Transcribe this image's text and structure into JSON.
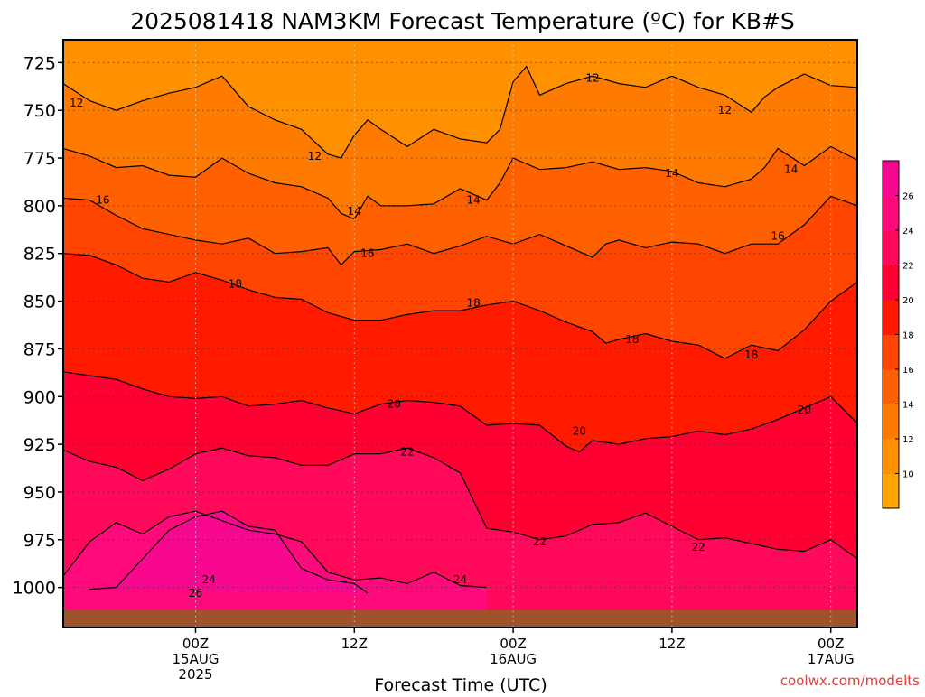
{
  "chart_data": {
    "type": "heatmap",
    "title": "2025081418 NAM3KM Forecast Temperature (ºC) for KB#S",
    "xlabel": "Forecast Time (UTC)",
    "ylabel": "",
    "credit": "coolwx.com/modelts",
    "y_axis": {
      "scale": "pressure",
      "direction": "decreasing-up",
      "range": [
        1012,
        713
      ],
      "ticks": [
        725,
        750,
        775,
        800,
        825,
        850,
        875,
        900,
        925,
        950,
        975,
        1000
      ]
    },
    "x_axis": {
      "unit": "hours",
      "range": [
        -10,
        50
      ],
      "ticks": [
        {
          "x": 0,
          "lines": [
            "00Z",
            "15AUG",
            "2025"
          ]
        },
        {
          "x": 12,
          "lines": [
            "12Z"
          ]
        },
        {
          "x": 24,
          "lines": [
            "00Z",
            "16AUG"
          ]
        },
        {
          "x": 36,
          "lines": [
            "12Z"
          ]
        },
        {
          "x": 48,
          "lines": [
            "00Z",
            "17AUG"
          ]
        }
      ]
    },
    "contour_interval": 2,
    "grid": true,
    "color_scale": {
      "levels": [
        8,
        10,
        12,
        14,
        16,
        18,
        20,
        22,
        24,
        26,
        28
      ],
      "labels": [
        10,
        12,
        14,
        16,
        18,
        20,
        22,
        24,
        26
      ],
      "colors": [
        "#ffa400",
        "#ff9000",
        "#ff7b00",
        "#ff6000",
        "#ff4500",
        "#ff1a00",
        "#ff0033",
        "#ff0a5a",
        "#ff0a7a",
        "#f8078f"
      ]
    },
    "isotherms": [
      {
        "value": 12,
        "points": [
          [
            -10,
            736
          ],
          [
            -8,
            745
          ],
          [
            -6,
            750
          ],
          [
            -4,
            745
          ],
          [
            -2,
            741
          ],
          [
            0,
            738
          ],
          [
            2,
            732
          ],
          [
            4,
            748
          ],
          [
            6,
            755
          ],
          [
            8,
            760
          ],
          [
            10,
            773
          ],
          [
            11,
            775
          ],
          [
            12,
            763
          ],
          [
            13,
            755
          ],
          [
            14,
            760
          ],
          [
            16,
            769
          ],
          [
            18,
            760
          ],
          [
            20,
            765
          ],
          [
            22,
            767
          ],
          [
            23,
            760
          ],
          [
            24,
            735
          ],
          [
            25,
            727
          ],
          [
            26,
            742
          ],
          [
            28,
            736
          ],
          [
            30,
            732
          ],
          [
            32,
            736
          ],
          [
            34,
            738
          ],
          [
            36,
            732
          ],
          [
            38,
            738
          ],
          [
            40,
            742
          ],
          [
            42,
            751
          ],
          [
            43,
            743
          ],
          [
            44,
            738
          ],
          [
            46,
            731
          ],
          [
            48,
            737
          ],
          [
            50,
            738
          ]
        ]
      },
      {
        "value": 14,
        "points": [
          [
            -10,
            770
          ],
          [
            -8,
            774
          ],
          [
            -6,
            780
          ],
          [
            -4,
            779
          ],
          [
            -2,
            784
          ],
          [
            0,
            785
          ],
          [
            2,
            775
          ],
          [
            4,
            783
          ],
          [
            6,
            788
          ],
          [
            8,
            790
          ],
          [
            10,
            796
          ],
          [
            11,
            804
          ],
          [
            12,
            807
          ],
          [
            13,
            795
          ],
          [
            14,
            800
          ],
          [
            16,
            800
          ],
          [
            18,
            799
          ],
          [
            20,
            791
          ],
          [
            22,
            797
          ],
          [
            23,
            788
          ],
          [
            24,
            775
          ],
          [
            26,
            781
          ],
          [
            28,
            780
          ],
          [
            30,
            777
          ],
          [
            32,
            781
          ],
          [
            34,
            780
          ],
          [
            36,
            782
          ],
          [
            38,
            788
          ],
          [
            40,
            790
          ],
          [
            42,
            786
          ],
          [
            43,
            780
          ],
          [
            44,
            770
          ],
          [
            46,
            779
          ],
          [
            48,
            769
          ],
          [
            50,
            776
          ]
        ]
      },
      {
        "value": 16,
        "points": [
          [
            -10,
            796
          ],
          [
            -8,
            797
          ],
          [
            -6,
            805
          ],
          [
            -4,
            812
          ],
          [
            -2,
            815
          ],
          [
            0,
            818
          ],
          [
            2,
            820
          ],
          [
            4,
            817
          ],
          [
            6,
            825
          ],
          [
            8,
            824
          ],
          [
            10,
            822
          ],
          [
            11,
            831
          ],
          [
            12,
            824
          ],
          [
            14,
            823
          ],
          [
            16,
            820
          ],
          [
            18,
            825
          ],
          [
            20,
            821
          ],
          [
            22,
            816
          ],
          [
            24,
            820
          ],
          [
            26,
            815
          ],
          [
            28,
            821
          ],
          [
            30,
            827
          ],
          [
            31,
            820
          ],
          [
            32,
            818
          ],
          [
            34,
            822
          ],
          [
            36,
            819
          ],
          [
            38,
            820
          ],
          [
            40,
            825
          ],
          [
            42,
            820
          ],
          [
            44,
            820
          ],
          [
            46,
            810
          ],
          [
            48,
            795
          ],
          [
            50,
            800
          ]
        ]
      },
      {
        "value": 18,
        "points": [
          [
            -10,
            825
          ],
          [
            -8,
            826
          ],
          [
            -6,
            831
          ],
          [
            -4,
            838
          ],
          [
            -2,
            840
          ],
          [
            0,
            835
          ],
          [
            2,
            839
          ],
          [
            4,
            844
          ],
          [
            6,
            848
          ],
          [
            8,
            849
          ],
          [
            10,
            856
          ],
          [
            12,
            860
          ],
          [
            14,
            860
          ],
          [
            16,
            857
          ],
          [
            18,
            855
          ],
          [
            20,
            855
          ],
          [
            22,
            852
          ],
          [
            24,
            850
          ],
          [
            26,
            855
          ],
          [
            28,
            861
          ],
          [
            30,
            866
          ],
          [
            31,
            872
          ],
          [
            32,
            870
          ],
          [
            34,
            867
          ],
          [
            36,
            871
          ],
          [
            38,
            873
          ],
          [
            40,
            880
          ],
          [
            42,
            873
          ],
          [
            44,
            876
          ],
          [
            46,
            865
          ],
          [
            48,
            850
          ],
          [
            50,
            840
          ]
        ]
      },
      {
        "value": 20,
        "points": [
          [
            -10,
            887
          ],
          [
            -8,
            889
          ],
          [
            -6,
            891
          ],
          [
            -4,
            896
          ],
          [
            -2,
            900
          ],
          [
            0,
            901
          ],
          [
            2,
            900
          ],
          [
            4,
            905
          ],
          [
            6,
            904
          ],
          [
            8,
            902
          ],
          [
            10,
            906
          ],
          [
            12,
            909
          ],
          [
            14,
            904
          ],
          [
            16,
            902
          ],
          [
            18,
            903
          ],
          [
            20,
            905
          ],
          [
            22,
            915
          ],
          [
            24,
            914
          ],
          [
            26,
            915
          ],
          [
            28,
            926
          ],
          [
            29,
            929
          ],
          [
            30,
            923
          ],
          [
            32,
            925
          ],
          [
            34,
            922
          ],
          [
            36,
            921
          ],
          [
            38,
            918
          ],
          [
            40,
            920
          ],
          [
            42,
            917
          ],
          [
            44,
            912
          ],
          [
            46,
            906
          ],
          [
            48,
            900
          ],
          [
            50,
            914
          ]
        ]
      },
      {
        "value": 22,
        "points": [
          [
            -10,
            928
          ],
          [
            -8,
            934
          ],
          [
            -6,
            937
          ],
          [
            -4,
            944
          ],
          [
            -2,
            938
          ],
          [
            0,
            930
          ],
          [
            2,
            927
          ],
          [
            4,
            931
          ],
          [
            6,
            932
          ],
          [
            8,
            936
          ],
          [
            10,
            936
          ],
          [
            12,
            930
          ],
          [
            14,
            930
          ],
          [
            16,
            927
          ],
          [
            18,
            932
          ],
          [
            20,
            940
          ],
          [
            22,
            969
          ],
          [
            24,
            971
          ],
          [
            26,
            975
          ],
          [
            28,
            973
          ],
          [
            30,
            967
          ],
          [
            32,
            966
          ],
          [
            34,
            961
          ],
          [
            36,
            968
          ],
          [
            38,
            975
          ],
          [
            40,
            974
          ],
          [
            42,
            977
          ],
          [
            44,
            980
          ],
          [
            46,
            981
          ],
          [
            48,
            975
          ],
          [
            50,
            985
          ]
        ]
      },
      {
        "value": 24,
        "points": [
          [
            -10,
            994
          ],
          [
            -8,
            976
          ],
          [
            -6,
            966
          ],
          [
            -4,
            972
          ],
          [
            -2,
            963
          ],
          [
            0,
            960
          ],
          [
            2,
            965
          ],
          [
            4,
            970
          ],
          [
            6,
            972
          ],
          [
            8,
            976
          ],
          [
            10,
            992
          ],
          [
            12,
            996
          ],
          [
            14,
            995
          ],
          [
            16,
            998
          ],
          [
            18,
            992
          ],
          [
            20,
            999
          ],
          [
            22,
            1000
          ]
        ]
      },
      {
        "value": 26,
        "points": [
          [
            -8,
            1001
          ],
          [
            -6,
            1000
          ],
          [
            -4,
            985
          ],
          [
            -2,
            970
          ],
          [
            0,
            963
          ],
          [
            2,
            960
          ],
          [
            4,
            968
          ],
          [
            6,
            970
          ],
          [
            8,
            990
          ],
          [
            10,
            996
          ],
          [
            12,
            998
          ],
          [
            13,
            1003
          ]
        ]
      }
    ],
    "contour_labels": [
      {
        "text": "12",
        "x": -9,
        "y": 746
      },
      {
        "text": "12",
        "x": 9,
        "y": 774
      },
      {
        "text": "12",
        "x": 30,
        "y": 733
      },
      {
        "text": "12",
        "x": 40,
        "y": 750
      },
      {
        "text": "14",
        "x": 12,
        "y": 803
      },
      {
        "text": "14",
        "x": 21,
        "y": 797
      },
      {
        "text": "14",
        "x": 36,
        "y": 783
      },
      {
        "text": "14",
        "x": 45,
        "y": 781
      },
      {
        "text": "16",
        "x": -7,
        "y": 797
      },
      {
        "text": "16",
        "x": 13,
        "y": 825
      },
      {
        "text": "16",
        "x": 44,
        "y": 816
      },
      {
        "text": "18",
        "x": 3,
        "y": 841
      },
      {
        "text": "18",
        "x": 21,
        "y": 851
      },
      {
        "text": "18",
        "x": 33,
        "y": 870
      },
      {
        "text": "18",
        "x": 42,
        "y": 878
      },
      {
        "text": "20",
        "x": 15,
        "y": 904
      },
      {
        "text": "20",
        "x": 29,
        "y": 918
      },
      {
        "text": "20",
        "x": 46,
        "y": 907
      },
      {
        "text": "22",
        "x": 16,
        "y": 929
      },
      {
        "text": "22",
        "x": 26,
        "y": 976
      },
      {
        "text": "22",
        "x": 38,
        "y": 979
      },
      {
        "text": "24",
        "x": 1,
        "y": 996
      },
      {
        "text": "24",
        "x": 20,
        "y": 996
      },
      {
        "text": "26",
        "x": 0,
        "y": 1003
      }
    ]
  }
}
